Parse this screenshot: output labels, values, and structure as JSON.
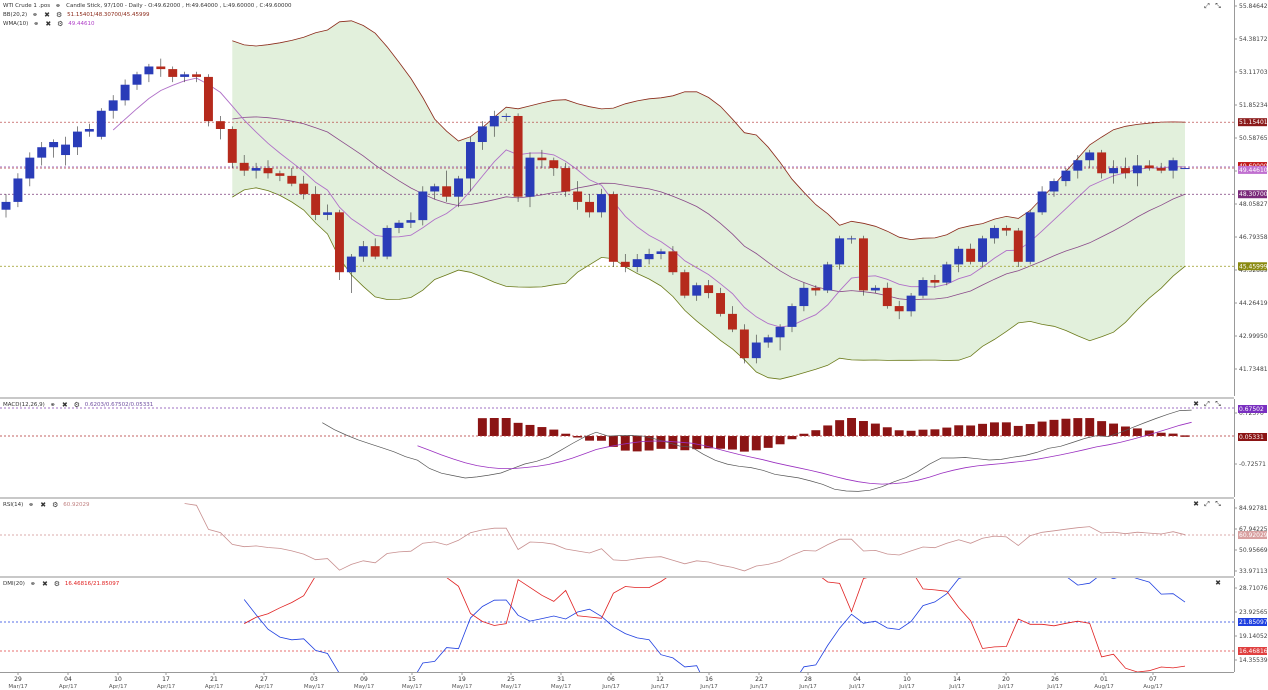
{
  "price_header": {
    "symbol": "WTI Crude 1 .pos",
    "chart_type": "Candle Stick, 97/100 - Daily - O:49.62000 , H:49.64000 , L:49.60000 , C:49.60000",
    "bb_label": "BB(20,2)",
    "bb_values": "51.15401/48.30700/45.45999",
    "wma_label": "WMA(10)",
    "wma_value": "49.44610"
  },
  "macd_header": {
    "label": "MACD(12,26,9)",
    "values": "0.6203/0.67502/0.05331"
  },
  "rsi_header": {
    "label": "RSI(14)",
    "value": "60.92029"
  },
  "dmi_header": {
    "label": "DMI(20)",
    "values": "16.46816/21.85097"
  },
  "price_axis_ticks": [
    "55.84642",
    "54.38172",
    "53.11703",
    "51.85234",
    "50.58765",
    "49.32296",
    "48.05827",
    "46.79358",
    "45.52889",
    "44.26419",
    "42.99950",
    "41.73481"
  ],
  "price_badges": {
    "upper": "51.15401",
    "close": "49.60000",
    "wma": "49.44610",
    "mid": "48.30700",
    "lower": "45.45999"
  },
  "macd_axis_ticks": [
    "0.72370",
    "-0.72571"
  ],
  "macd_badges": {
    "signal": "0.67502",
    "hist": "0.05331"
  },
  "rsi_axis_ticks": [
    "84.92781",
    "67.94225",
    "50.95669",
    "33.97113"
  ],
  "rsi_badges": {
    "rsi": "60.92029"
  },
  "dmi_axis_ticks": [
    "28.71076",
    "23.92565",
    "19.14052",
    "14.35539"
  ],
  "dmi_badges": {
    "plus": "21.85097",
    "minus": "16.46816"
  },
  "x_axis": {
    "days": [
      "29",
      "04",
      "10",
      "17",
      "21",
      "27",
      "03",
      "09",
      "15",
      "19",
      "25",
      "31",
      "06",
      "12",
      "16",
      "22",
      "28",
      "04",
      "10",
      "14",
      "20",
      "26",
      "01",
      "07"
    ],
    "months": [
      "Mar/17",
      "Apr/17",
      "Apr/17",
      "Apr/17",
      "Apr/17",
      "Apr/17",
      "May/17",
      "May/17",
      "May/17",
      "May/17",
      "May/17",
      "May/17",
      "Jun/17",
      "Jun/17",
      "Jun/17",
      "Jun/17",
      "Jun/17",
      "Jul/17",
      "Jul/17",
      "Jul/17",
      "Jul/17",
      "Jul/17",
      "Aug/17",
      "Aug/17"
    ]
  },
  "colors": {
    "up": "#2a3cb8",
    "down": "#b52a1c",
    "band_fill": "#e2f0dc",
    "band_upper": "#8b2a1a",
    "band_lower": "#6b7a1a",
    "wma": "#b070c8",
    "mid": "#8a4a8a",
    "macd_hist": "#8b1414",
    "signal": "#9a30c0",
    "rsi": "#c89090",
    "di_plus": "#2040e0",
    "di_minus": "#e02020"
  },
  "chart_data": [
    {
      "type": "candlestick",
      "title": "WTI Crude 1 .pos",
      "ylim": [
        41.0,
        55.9
      ],
      "candles": [
        [
          48.0,
          48.6,
          47.7,
          48.3
        ],
        [
          48.3,
          49.4,
          48.1,
          49.2
        ],
        [
          49.2,
          50.2,
          48.9,
          50.0
        ],
        [
          50.0,
          50.6,
          49.7,
          50.4
        ],
        [
          50.4,
          50.7,
          50.0,
          50.6
        ],
        [
          50.1,
          50.8,
          49.7,
          50.5
        ],
        [
          50.4,
          51.2,
          50.1,
          51.0
        ],
        [
          51.0,
          51.3,
          50.8,
          51.1
        ],
        [
          50.8,
          51.9,
          50.7,
          51.8
        ],
        [
          51.8,
          52.4,
          51.5,
          52.2
        ],
        [
          52.2,
          53.0,
          52.0,
          52.8
        ],
        [
          52.8,
          53.3,
          52.6,
          53.2
        ],
        [
          53.2,
          53.6,
          52.9,
          53.5
        ],
        [
          53.5,
          53.8,
          53.1,
          53.4
        ],
        [
          53.4,
          53.5,
          52.9,
          53.1
        ],
        [
          53.1,
          53.3,
          52.9,
          53.2
        ],
        [
          53.2,
          53.3,
          52.9,
          53.1
        ],
        [
          53.1,
          53.2,
          51.2,
          51.4
        ],
        [
          51.4,
          51.6,
          50.7,
          51.1
        ],
        [
          51.1,
          51.2,
          49.6,
          49.8
        ],
        [
          49.8,
          50.1,
          49.3,
          49.5
        ],
        [
          49.5,
          49.8,
          49.2,
          49.6
        ],
        [
          49.6,
          49.9,
          49.2,
          49.4
        ],
        [
          49.4,
          49.5,
          49.1,
          49.3
        ],
        [
          49.3,
          49.6,
          48.9,
          49.0
        ],
        [
          49.0,
          49.3,
          48.4,
          48.6
        ],
        [
          48.6,
          48.9,
          47.6,
          47.8
        ],
        [
          47.8,
          48.2,
          47.6,
          47.9
        ],
        [
          47.9,
          48.0,
          45.3,
          45.6
        ],
        [
          45.6,
          46.3,
          44.8,
          46.2
        ],
        [
          46.2,
          46.8,
          46.0,
          46.6
        ],
        [
          46.6,
          46.9,
          46.1,
          46.2
        ],
        [
          46.2,
          47.4,
          46.1,
          47.3
        ],
        [
          47.3,
          47.6,
          47.1,
          47.5
        ],
        [
          47.5,
          47.9,
          47.3,
          47.6
        ],
        [
          47.6,
          48.9,
          47.4,
          48.7
        ],
        [
          48.7,
          49.0,
          48.4,
          48.9
        ],
        [
          48.9,
          49.5,
          48.3,
          48.5
        ],
        [
          48.5,
          49.3,
          48.1,
          49.2
        ],
        [
          49.2,
          50.8,
          48.7,
          50.6
        ],
        [
          50.6,
          51.4,
          50.3,
          51.2
        ],
        [
          51.2,
          51.8,
          50.8,
          51.6
        ],
        [
          51.6,
          51.7,
          51.4,
          51.6
        ],
        [
          51.6,
          51.7,
          48.3,
          48.5
        ],
        [
          48.5,
          50.2,
          48.1,
          50.0
        ],
        [
          50.0,
          50.3,
          49.6,
          49.9
        ],
        [
          49.9,
          50.0,
          49.3,
          49.6
        ],
        [
          49.6,
          49.8,
          48.5,
          48.7
        ],
        [
          48.7,
          49.1,
          48.0,
          48.3
        ],
        [
          48.3,
          48.6,
          47.7,
          47.9
        ],
        [
          47.9,
          48.8,
          47.7,
          48.6
        ],
        [
          48.6,
          48.7,
          45.8,
          46.0
        ],
        [
          46.0,
          46.3,
          45.6,
          45.8
        ],
        [
          45.8,
          46.3,
          45.6,
          46.1
        ],
        [
          46.1,
          46.5,
          45.9,
          46.3
        ],
        [
          46.3,
          46.5,
          46.1,
          46.4
        ],
        [
          46.4,
          46.6,
          45.5,
          45.6
        ],
        [
          45.6,
          45.7,
          44.6,
          44.7
        ],
        [
          44.7,
          45.2,
          44.5,
          45.1
        ],
        [
          45.1,
          45.3,
          44.6,
          44.8
        ],
        [
          44.8,
          45.0,
          43.9,
          44.0
        ],
        [
          44.0,
          44.3,
          43.3,
          43.4
        ],
        [
          43.4,
          43.6,
          42.1,
          42.3
        ],
        [
          42.3,
          43.2,
          42.1,
          42.9
        ],
        [
          42.9,
          43.2,
          42.7,
          43.1
        ],
        [
          43.1,
          43.6,
          42.6,
          43.5
        ],
        [
          43.5,
          44.4,
          43.3,
          44.3
        ],
        [
          44.3,
          45.2,
          44.1,
          45.0
        ],
        [
          45.0,
          45.1,
          44.7,
          44.9
        ],
        [
          44.9,
          46.0,
          44.8,
          45.9
        ],
        [
          45.9,
          47.0,
          45.7,
          46.9
        ],
        [
          46.9,
          47.0,
          46.7,
          46.9
        ],
        [
          46.9,
          47.0,
          44.7,
          44.9
        ],
        [
          44.9,
          45.1,
          44.8,
          45.0
        ],
        [
          45.0,
          45.2,
          44.2,
          44.3
        ],
        [
          44.3,
          44.5,
          43.8,
          44.1
        ],
        [
          44.1,
          44.8,
          43.9,
          44.7
        ],
        [
          44.7,
          45.4,
          44.6,
          45.3
        ],
        [
          45.3,
          45.5,
          45.0,
          45.2
        ],
        [
          45.2,
          46.0,
          45.1,
          45.9
        ],
        [
          45.9,
          46.6,
          45.6,
          46.5
        ],
        [
          46.5,
          46.7,
          45.9,
          46.0
        ],
        [
          46.0,
          47.0,
          45.8,
          46.9
        ],
        [
          46.9,
          47.4,
          46.7,
          47.3
        ],
        [
          47.3,
          47.4,
          47.0,
          47.2
        ],
        [
          47.2,
          47.3,
          45.8,
          46.0
        ],
        [
          46.0,
          48.0,
          45.9,
          47.9
        ],
        [
          47.9,
          48.9,
          47.8,
          48.7
        ],
        [
          48.7,
          49.2,
          48.5,
          49.1
        ],
        [
          49.1,
          49.6,
          48.9,
          49.5
        ],
        [
          49.5,
          50.1,
          49.2,
          49.9
        ],
        [
          49.9,
          50.3,
          49.6,
          50.2
        ],
        [
          50.2,
          50.3,
          49.2,
          49.4
        ],
        [
          49.4,
          49.9,
          49.0,
          49.6
        ],
        [
          49.6,
          50.0,
          49.2,
          49.4
        ],
        [
          49.4,
          50.1,
          48.9,
          49.7
        ],
        [
          49.7,
          49.9,
          49.5,
          49.6
        ],
        [
          49.6,
          49.8,
          49.4,
          49.5
        ],
        [
          49.5,
          50.0,
          49.2,
          49.9
        ],
        [
          49.6,
          49.6,
          49.6,
          49.6
        ]
      ]
    },
    {
      "type": "line",
      "title": "MACD(12,26,9)",
      "ylim": [
        -1.6,
        1.3
      ],
      "macd_start": 19,
      "histogram_start": 40
    },
    {
      "type": "line",
      "title": "RSI(14)",
      "ylim": [
        25,
        92
      ]
    },
    {
      "type": "line",
      "title": "DMI(20)",
      "ylim": [
        12,
        31
      ]
    }
  ]
}
